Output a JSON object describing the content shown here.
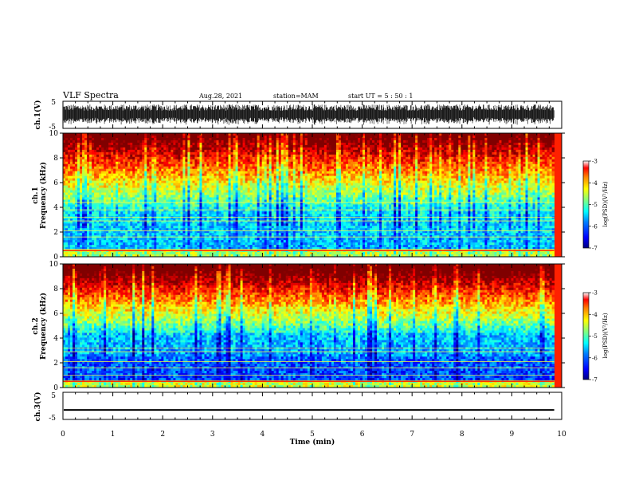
{
  "header": {
    "title": "VLF Spectra",
    "date": "Aug.28, 2021",
    "station": "station=MAM",
    "start": "start  UT =   5 : 50 : 1"
  },
  "chart_data": [
    {
      "type": "line",
      "panel": "ch1-waveform",
      "ylabel": "ch.1(V)",
      "ylim": [
        -5,
        5
      ],
      "yticks": [
        5,
        -5
      ],
      "description": "dense noise waveform between about -4 and +4 V"
    },
    {
      "type": "heatmap",
      "panel": "ch1-spectrogram",
      "ylabel": "ch.1  Frequency (kHz)",
      "ylabel_top": "ch.1",
      "ylabel_main": "Frequency  (kHz)",
      "ylim": [
        0,
        10
      ],
      "yticks": [
        0,
        2,
        4,
        6,
        8,
        10
      ],
      "xlim": [
        0,
        9.85
      ],
      "colorbar": {
        "label": "log(PSD)(V²/Hz)",
        "range": [
          -7,
          -3
        ],
        "ticks": [
          -3,
          -4,
          -5,
          -6,
          -7
        ]
      },
      "horizontal_lines_khz": [
        0.6,
        1.6,
        2.1,
        2.9,
        3.2,
        3.8,
        4.4
      ]
    },
    {
      "type": "heatmap",
      "panel": "ch2-spectrogram",
      "ylabel_top": "ch.2",
      "ylabel_main": "Frequency  (kHz)",
      "ylim": [
        0,
        10
      ],
      "yticks": [
        0,
        2,
        4,
        6,
        8,
        10
      ],
      "xlim": [
        0,
        9.85
      ],
      "colorbar": {
        "label": "log(PSD)(V²/Hz)",
        "range": [
          -7,
          -3
        ],
        "ticks": [
          -3,
          -4,
          -5,
          -6,
          -7
        ]
      },
      "horizontal_lines_khz": [
        1.0,
        1.6,
        2.1,
        2.9,
        3.2
      ]
    },
    {
      "type": "line",
      "panel": "ch3-waveform",
      "ylabel": "ch.3(V)",
      "ylim": [
        -5,
        5
      ],
      "yticks": [
        5,
        -5
      ],
      "x": [
        0,
        9.85
      ],
      "y": [
        -1.5,
        -1.5
      ]
    }
  ],
  "xaxis": {
    "label": "Time  (min)",
    "ticks": [
      0,
      1,
      2,
      3,
      4,
      5,
      6,
      7,
      8,
      9,
      10
    ],
    "tick_labels": [
      "0",
      "1",
      "2",
      "3",
      "4",
      "5",
      "6",
      "7",
      "8",
      "9",
      "10"
    ]
  },
  "colorbar_label": "log(PSD)(V²/Hz)",
  "colorbar_ticks": [
    "-3",
    "-4",
    "-5",
    "-6",
    "-7"
  ],
  "yticks_freq": [
    "0",
    "2",
    "4",
    "6",
    "8",
    "10"
  ],
  "yticks_volt": [
    "5",
    "-5"
  ],
  "colors": {
    "jet": [
      "#00007f",
      "#0000ff",
      "#0080ff",
      "#00ffff",
      "#80ff80",
      "#ffff00",
      "#ff8000",
      "#ff0000",
      "#ffffff"
    ]
  }
}
